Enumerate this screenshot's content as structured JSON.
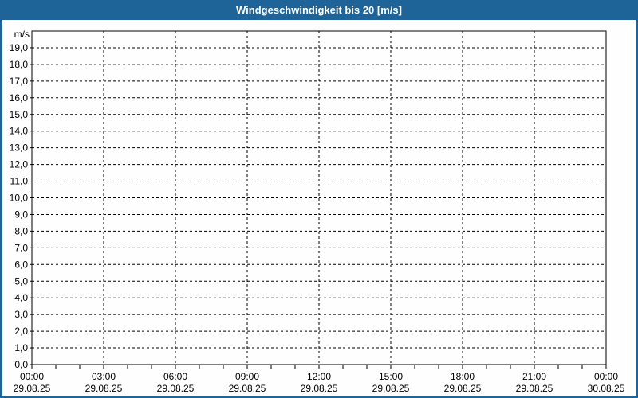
{
  "window": {
    "title": "Windgeschwindigkeit bis 20 [m/s]"
  },
  "colors": {
    "title_bar": "#1F6498",
    "title_text": "#FFFFFF",
    "border": "#1F6498",
    "background": "#FDFEFD",
    "axis": "#000000",
    "grid": "#000000",
    "label_text": "#000000"
  },
  "chart_data": {
    "type": "line",
    "title": "Windgeschwindigkeit bis 20 [m/s]",
    "ylabel": "m/s",
    "ylim": [
      0,
      20
    ],
    "y_tick_step": 1.0,
    "y_tick_labels": [
      "0,0",
      "1,0",
      "2,0",
      "3,0",
      "4,0",
      "5,0",
      "6,0",
      "7,0",
      "8,0",
      "9,0",
      "10,0",
      "11,0",
      "12,0",
      "13,0",
      "14,0",
      "15,0",
      "16,0",
      "17,0",
      "18,0",
      "19,0"
    ],
    "x_range_hours": 24,
    "x_major_step_hours": 3,
    "x_minor_step_hours": 1,
    "x_ticks": [
      {
        "time": "00:00",
        "date": "29.08.25"
      },
      {
        "time": "03:00",
        "date": "29.08.25"
      },
      {
        "time": "06:00",
        "date": "29.08.25"
      },
      {
        "time": "09:00",
        "date": "29.08.25"
      },
      {
        "time": "12:00",
        "date": "29.08.25"
      },
      {
        "time": "15:00",
        "date": "29.08.25"
      },
      {
        "time": "18:00",
        "date": "29.08.25"
      },
      {
        "time": "21:00",
        "date": "29.08.25"
      },
      {
        "time": "00:00",
        "date": "30.08.25"
      }
    ],
    "grid": "dashed",
    "legend": null,
    "series": []
  }
}
